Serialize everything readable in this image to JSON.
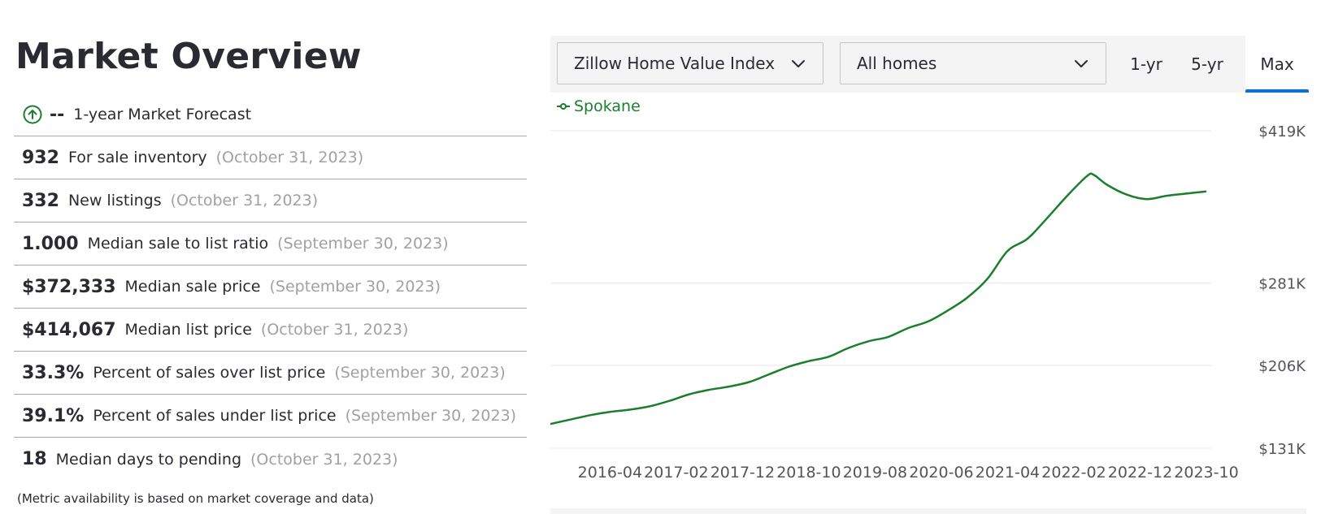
{
  "page": {
    "title": "Market Overview"
  },
  "forecast": {
    "value": "--",
    "label": "1-year Market Forecast",
    "icon": "arrow-up-circle-icon"
  },
  "metrics": [
    {
      "value": "932",
      "label": "For sale inventory",
      "date": "(October 31, 2023)"
    },
    {
      "value": "332",
      "label": "New listings",
      "date": "(October 31, 2023)"
    },
    {
      "value": "1.000",
      "label": "Median sale to list ratio",
      "date": "(September 30, 2023)"
    },
    {
      "value": "$372,333",
      "label": "Median sale price",
      "date": "(September 30, 2023)"
    },
    {
      "value": "$414,067",
      "label": "Median list price",
      "date": "(October 31, 2023)"
    },
    {
      "value": "33.3%",
      "label": "Percent of sales over list price",
      "date": "(September 30, 2023)"
    },
    {
      "value": "39.1%",
      "label": "Percent of sales under list price",
      "date": "(September 30, 2023)"
    },
    {
      "value": "18",
      "label": "Median days to pending",
      "date": "(October 31, 2023)"
    }
  ],
  "footnote": "(Metric availability is based on market coverage and data)",
  "toolbar": {
    "metric_select": "Zillow Home Value Index",
    "home_type_select": "All homes",
    "ranges": [
      "1-yr",
      "5-yr",
      "Max"
    ],
    "active_range": "Max"
  },
  "colors": {
    "series": "#1a7f2c",
    "accent": "#0d6fd6",
    "grid": "#e8e8ea"
  },
  "chart_data": {
    "type": "line",
    "series": [
      {
        "name": "Spokane",
        "x": [
          "2015-07",
          "2015-10",
          "2016-01",
          "2016-04",
          "2016-07",
          "2016-10",
          "2017-01",
          "2017-04",
          "2017-07",
          "2017-10",
          "2018-01",
          "2018-04",
          "2018-07",
          "2018-10",
          "2019-01",
          "2019-04",
          "2019-07",
          "2019-10",
          "2020-01",
          "2020-04",
          "2020-07",
          "2020-10",
          "2021-01",
          "2021-04",
          "2021-07",
          "2021-10",
          "2022-01",
          "2022-04",
          "2022-05",
          "2022-07",
          "2022-10",
          "2023-01",
          "2023-04",
          "2023-07",
          "2023-10"
        ],
        "values": [
          153,
          157,
          161,
          164,
          166,
          169,
          174,
          180,
          184,
          187,
          191,
          198,
          205,
          210,
          214,
          222,
          228,
          232,
          240,
          246,
          256,
          268,
          285,
          310,
          321,
          340,
          360,
          378,
          379,
          370,
          361,
          357,
          360,
          362,
          364
        ]
      }
    ],
    "x_tick_labels": [
      "2016-04",
      "2017-02",
      "2017-12",
      "2018-10",
      "2019-08",
      "2020-06",
      "2021-04",
      "2022-02",
      "2022-12",
      "2023-10"
    ],
    "y_ticks": [
      131,
      206,
      281,
      419
    ],
    "y_tick_labels": [
      "$131K",
      "$206K",
      "$281K",
      "$419K"
    ],
    "ylim": [
      131,
      419
    ],
    "xlim": [
      "2015-07",
      "2023-10"
    ],
    "legend_position": "top-left",
    "grid": true
  }
}
